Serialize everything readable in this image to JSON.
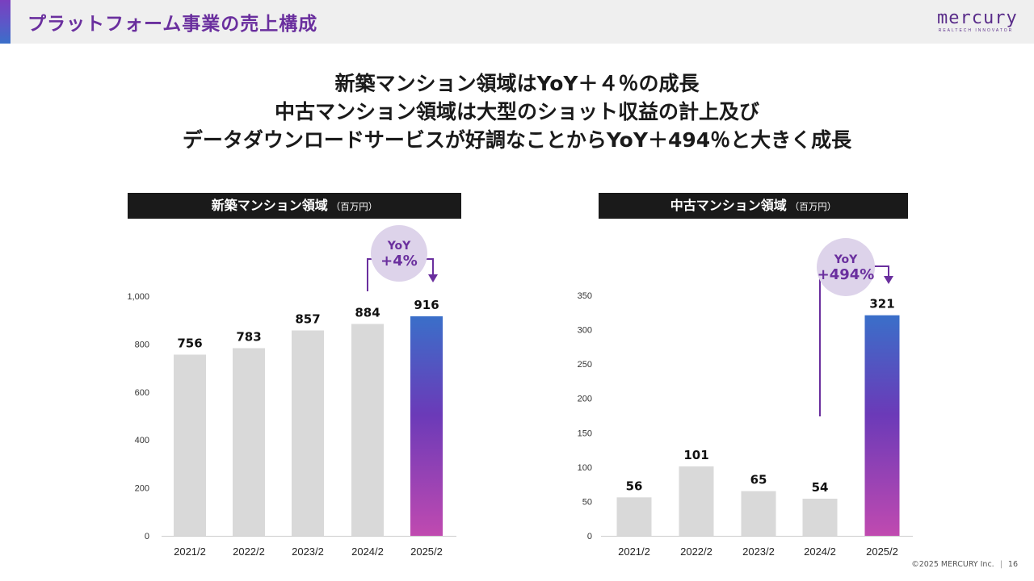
{
  "header": {
    "title": "プラットフォーム事業の売上構成",
    "logo_word": "mercury",
    "logo_tagline": "REALTECH INNOVATOR"
  },
  "headline": {
    "line1": "新築マンション領域はYoY＋４％の成長",
    "line2": "中古マンション領域は大型のショット収益の計上及び",
    "line3": "データダウンロードサービスが好調なことからYoY＋494％と大きく成長"
  },
  "panels": {
    "left": {
      "title": "新築マンション領域",
      "unit": "（百万円）"
    },
    "right": {
      "title": "中古マンション領域",
      "unit": "（百万円）"
    }
  },
  "footer": {
    "copyright": "©2025 MERCURY Inc.",
    "page_number": "16"
  },
  "colors": {
    "bar_gray": "#d9d9d9",
    "highlight_top": "#3a6fc9",
    "highlight_mid": "#6b3ab8",
    "highlight_bottom": "#c04ab0",
    "accent_purple": "#6a2f9e",
    "badge_fill": "#ddd3ea"
  },
  "chart_data": [
    {
      "type": "bar",
      "categories": [
        "2021/2",
        "2022/2",
        "2023/2",
        "2024/2",
        "2025/2"
      ],
      "values": [
        756,
        783,
        857,
        884,
        916
      ],
      "value_labels": [
        "756",
        "783",
        "857",
        "884",
        "916"
      ],
      "ylim": [
        0,
        1000
      ],
      "yticks": [
        0,
        200,
        400,
        600,
        800,
        1000
      ],
      "ytick_labels": [
        "0",
        "200",
        "400",
        "600",
        "800",
        "1,000"
      ],
      "highlight_index": 4,
      "annotation": {
        "line1": "YoY",
        "line2": "+4%",
        "from_index": 3,
        "to_index": 4
      },
      "grid": false
    },
    {
      "type": "bar",
      "categories": [
        "2021/2",
        "2022/2",
        "2023/2",
        "2024/2",
        "2025/2"
      ],
      "values": [
        56,
        101,
        65,
        54,
        321
      ],
      "value_labels": [
        "56",
        "101",
        "65",
        "54",
        "321"
      ],
      "ylim": [
        0,
        350
      ],
      "yticks": [
        0,
        50,
        100,
        150,
        200,
        250,
        300,
        350
      ],
      "ytick_labels": [
        "0",
        "50",
        "100",
        "150",
        "200",
        "250",
        "300",
        "350"
      ],
      "highlight_index": 4,
      "annotation": {
        "line1": "YoY",
        "line2": "+494%",
        "from_index": 3,
        "to_index": 4
      },
      "grid": false
    }
  ]
}
